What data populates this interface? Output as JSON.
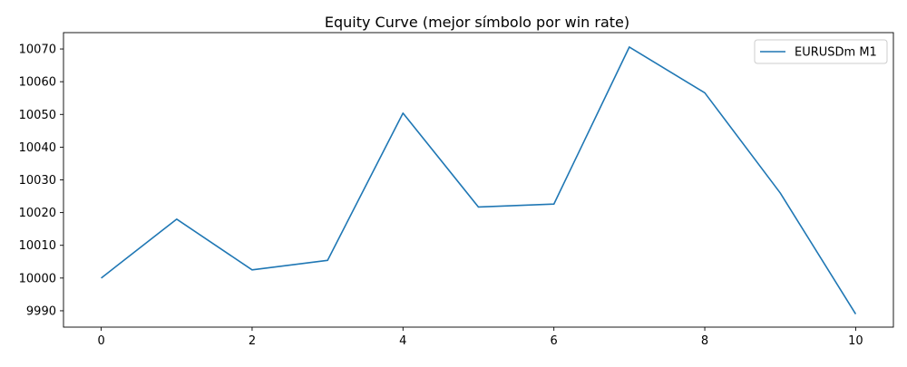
{
  "chart_data": {
    "type": "line",
    "title": "Equity Curve (mejor símbolo por win rate)",
    "xlabel": "",
    "ylabel": "",
    "x": [
      0,
      1,
      2,
      3,
      4,
      5,
      6,
      7,
      8,
      9,
      10
    ],
    "series": [
      {
        "name": "EURUSDm M1",
        "color": "#1f77b4",
        "values": [
          10000.0,
          10018.0,
          10002.5,
          10005.4,
          10050.4,
          10021.7,
          10022.6,
          10070.6,
          10056.6,
          10026.0,
          9989.0
        ]
      }
    ],
    "xlim": [
      -0.5,
      10.5
    ],
    "ylim": [
      9985,
      10075
    ],
    "xticks": [
      0,
      2,
      4,
      6,
      8,
      10
    ],
    "yticks": [
      9990,
      10000,
      10010,
      10020,
      10030,
      10040,
      10050,
      10060,
      10070
    ],
    "grid": false,
    "legend_position": "top-right"
  }
}
